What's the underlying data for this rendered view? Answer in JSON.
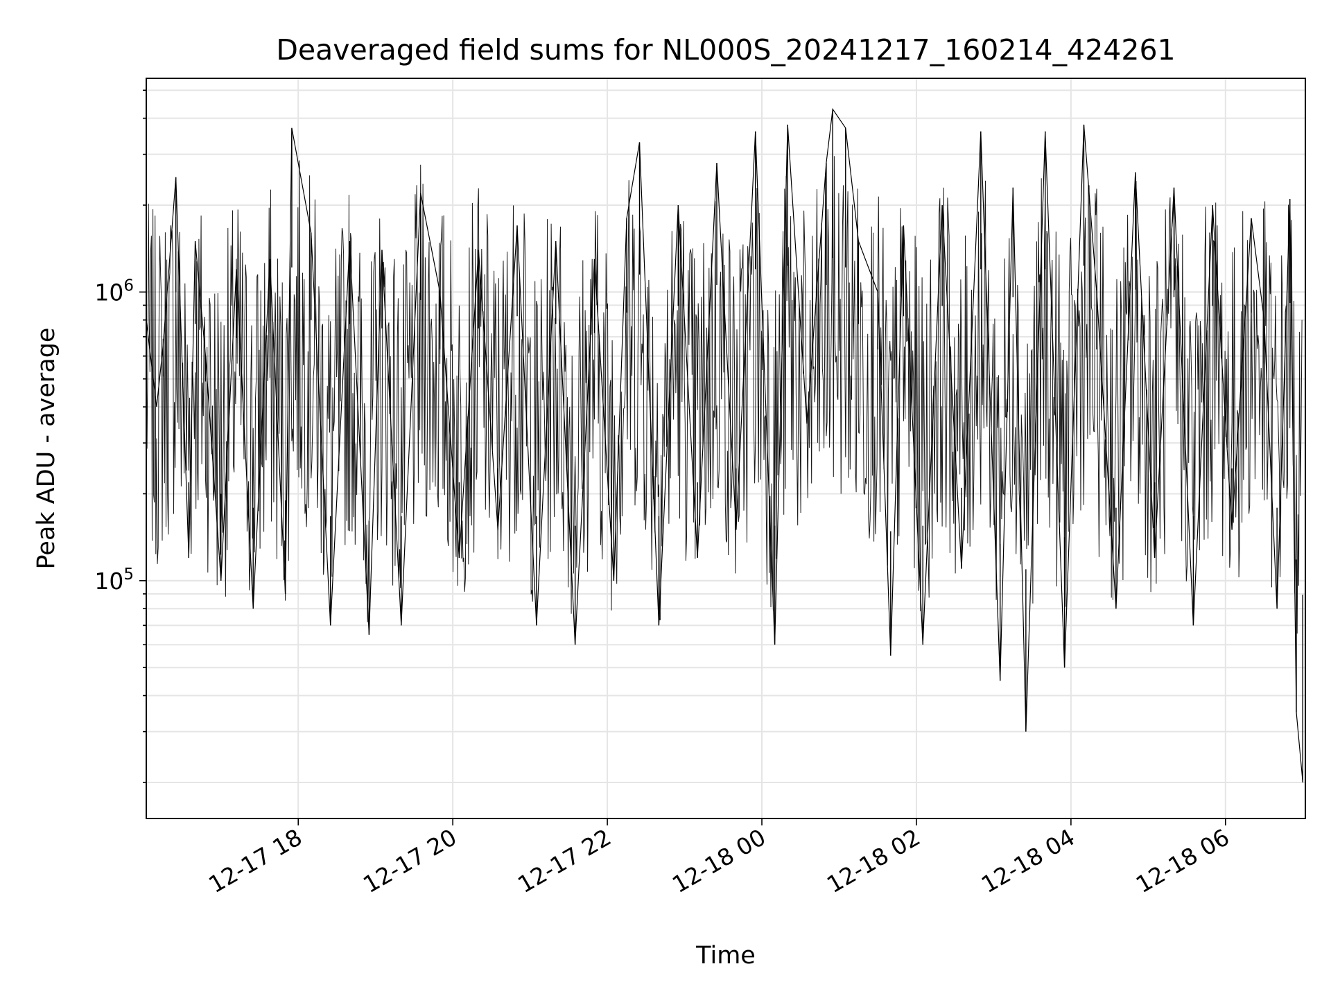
{
  "chart_data": {
    "type": "line",
    "title": "Deaveraged field sums for NL000S_20241217_160214_424261",
    "xlabel": "Time",
    "ylabel": "Peak ADU - average",
    "x_scale": "time",
    "y_scale": "log",
    "xlim": [
      "2024-12-17 16:02",
      "2024-12-18 07:02"
    ],
    "ylim": [
      15000,
      5500000
    ],
    "x_ticks": [
      {
        "value": "2024-12-17 18:00",
        "label": "12-17 18"
      },
      {
        "value": "2024-12-17 20:00",
        "label": "12-17 20"
      },
      {
        "value": "2024-12-17 22:00",
        "label": "12-17 22"
      },
      {
        "value": "2024-12-18 00:00",
        "label": "12-18 00"
      },
      {
        "value": "2024-12-18 02:00",
        "label": "12-18 02"
      },
      {
        "value": "2024-12-18 04:00",
        "label": "12-18 04"
      },
      {
        "value": "2024-12-18 06:00",
        "label": "12-18 06"
      }
    ],
    "y_ticks": [
      {
        "value": 100000,
        "base": "10",
        "exp": "5"
      },
      {
        "value": 1000000,
        "base": "10",
        "exp": "6"
      }
    ],
    "grid": true,
    "line_color": "#000000",
    "grid_color": "#e5e5e5",
    "series": [
      {
        "x": [
          "2024-12-17 16:02",
          "2024-12-17 16:10",
          "2024-12-17 16:15",
          "2024-12-17 16:25",
          "2024-12-17 16:35",
          "2024-12-17 16:40",
          "2024-12-17 16:48",
          "2024-12-17 17:00",
          "2024-12-17 17:12",
          "2024-12-17 17:25",
          "2024-12-17 17:38",
          "2024-12-17 17:50",
          "2024-12-17 17:55",
          "2024-12-17 18:10",
          "2024-12-17 18:25",
          "2024-12-17 18:40",
          "2024-12-17 18:55",
          "2024-12-17 19:05",
          "2024-12-17 19:20",
          "2024-12-17 19:35",
          "2024-12-17 19:50",
          "2024-12-17 20:05",
          "2024-12-17 20:20",
          "2024-12-17 20:35",
          "2024-12-17 20:50",
          "2024-12-17 21:05",
          "2024-12-17 21:20",
          "2024-12-17 21:35",
          "2024-12-17 21:50",
          "2024-12-17 22:05",
          "2024-12-17 22:15",
          "2024-12-17 22:25",
          "2024-12-17 22:40",
          "2024-12-17 22:55",
          "2024-12-17 23:10",
          "2024-12-17 23:25",
          "2024-12-17 23:40",
          "2024-12-17 23:55",
          "2024-12-18 00:10",
          "2024-12-18 00:20",
          "2024-12-18 00:35",
          "2024-12-18 00:50",
          "2024-12-18 00:55",
          "2024-12-18 01:05",
          "2024-12-18 01:15",
          "2024-12-18 01:30",
          "2024-12-18 01:40",
          "2024-12-18 01:50",
          "2024-12-18 02:05",
          "2024-12-18 02:20",
          "2024-12-18 02:35",
          "2024-12-18 02:50",
          "2024-12-18 03:05",
          "2024-12-18 03:15",
          "2024-12-18 03:25",
          "2024-12-18 03:40",
          "2024-12-18 03:55",
          "2024-12-18 04:10",
          "2024-12-18 04:20",
          "2024-12-18 04:35",
          "2024-12-18 04:50",
          "2024-12-18 05:05",
          "2024-12-18 05:20",
          "2024-12-18 05:35",
          "2024-12-18 05:50",
          "2024-12-18 06:05",
          "2024-12-18 06:20",
          "2024-12-18 06:30",
          "2024-12-18 06:40",
          "2024-12-18 06:50",
          "2024-12-18 06:55",
          "2024-12-18 07:00"
        ],
        "y": [
          800000,
          400000,
          650000,
          2500000,
          120000,
          1500000,
          600000,
          100000,
          1200000,
          80000,
          1300000,
          90000,
          3700000,
          1600000,
          70000,
          1500000,
          65000,
          1400000,
          70000,
          2200000,
          1000000,
          120000,
          1400000,
          150000,
          1700000,
          70000,
          1500000,
          60000,
          1300000,
          100000,
          1800000,
          3300000,
          70000,
          2000000,
          120000,
          2800000,
          150000,
          3600000,
          60000,
          3800000,
          350000,
          2800000,
          4300000,
          3700000,
          1500000,
          1000000,
          55000,
          1700000,
          60000,
          2000000,
          110000,
          3600000,
          45000,
          2300000,
          30000,
          3600000,
          50000,
          3800000,
          1000000,
          80000,
          2600000,
          120000,
          2300000,
          70000,
          2000000,
          150000,
          1800000,
          800000,
          80000,
          2100000,
          35000,
          20000
        ]
      }
    ]
  }
}
